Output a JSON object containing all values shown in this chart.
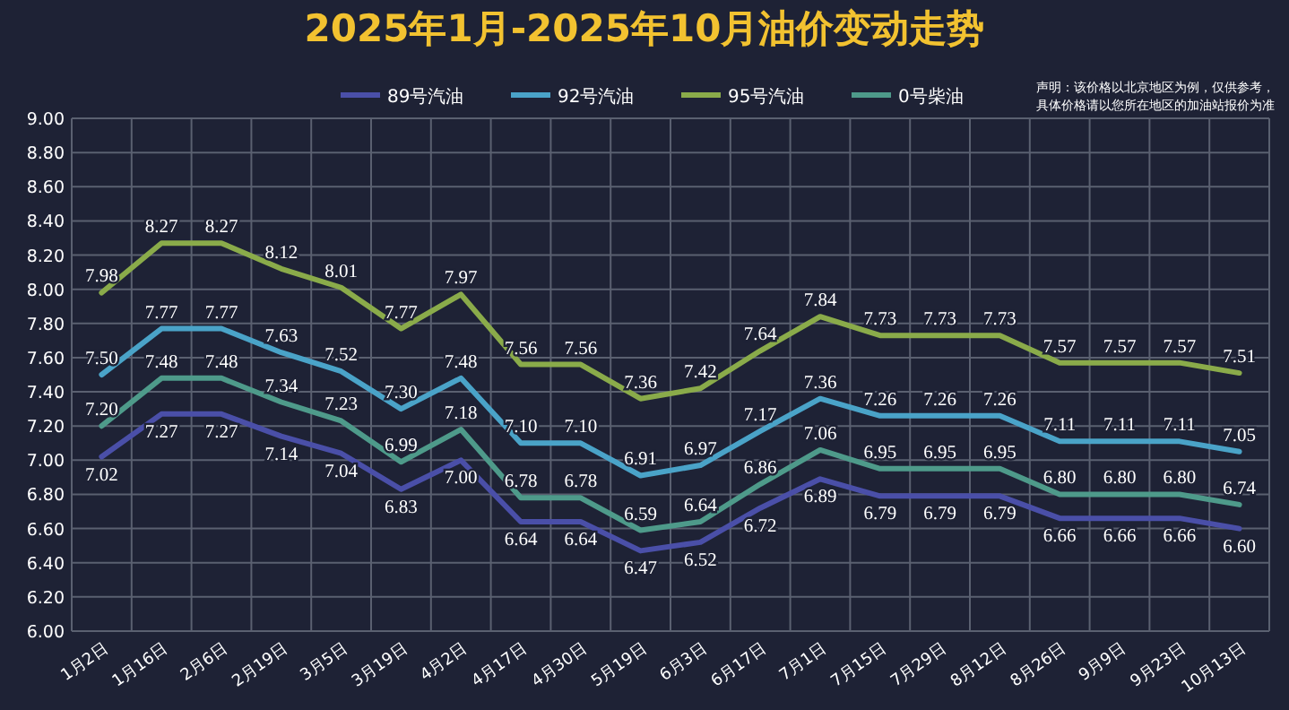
{
  "chart_data": {
    "type": "line",
    "title": "2025年1月-2025年10月油价变动走势",
    "annotations": [
      "声明：该价格以北京地区为例，仅供参考，具体价格请以您所在地区的加油站报价为准"
    ],
    "categories": [
      "1月2日",
      "1月16日",
      "2月6日",
      "2月19日",
      "3月5日",
      "3月19日",
      "4月2日",
      "4月17日",
      "4月30日",
      "5月19日",
      "6月3日",
      "6月17日",
      "7月1日",
      "7月15日",
      "7月29日",
      "8月12日",
      "8月26日",
      "9月9日",
      "9月23日",
      "10月13日"
    ],
    "series": [
      {
        "name": "89号汽油",
        "color": "#4a4fa8",
        "values": [
          7.02,
          7.27,
          7.27,
          7.14,
          7.04,
          6.83,
          7.0,
          6.64,
          6.64,
          6.47,
          6.52,
          6.72,
          6.89,
          6.79,
          6.79,
          6.79,
          6.66,
          6.66,
          6.66,
          6.6
        ],
        "value_labels": [
          "7.02",
          "7.27",
          "7.27",
          "7.14",
          "7.04",
          "6.83",
          "7.00",
          "6.64",
          "6.64",
          "6.47",
          "6.52",
          "6.72",
          "6.89",
          "6.79",
          "6.79",
          "6.79",
          "6.66",
          "6.66",
          "6.66",
          "6.60"
        ]
      },
      {
        "name": "92号汽油",
        "color": "#4aa3c8",
        "values": [
          7.5,
          7.77,
          7.77,
          7.63,
          7.52,
          7.3,
          7.48,
          7.1,
          7.1,
          6.91,
          6.97,
          7.17,
          7.36,
          7.26,
          7.26,
          7.26,
          7.11,
          7.11,
          7.11,
          7.05
        ],
        "value_labels": [
          "7.50",
          "7.77",
          "7.77",
          "7.63",
          "7.52",
          "7.30",
          "7.48",
          "7.10",
          "7.10",
          "6.91",
          "6.97",
          "7.17",
          "7.36",
          "7.26",
          "7.26",
          "7.26",
          "7.11",
          "7.11",
          "7.11",
          "7.05"
        ]
      },
      {
        "name": "95号汽油",
        "color": "#8aab4a",
        "values": [
          7.98,
          8.27,
          8.27,
          8.12,
          8.01,
          7.77,
          7.97,
          7.56,
          7.56,
          7.36,
          7.42,
          7.64,
          7.84,
          7.73,
          7.73,
          7.73,
          7.57,
          7.57,
          7.57,
          7.51
        ],
        "value_labels": [
          "7.98",
          "8.27",
          "8.27",
          "8.12",
          "8.01",
          "7.77",
          "7.97",
          "7.56",
          "7.56",
          "7.36",
          "7.42",
          "7.64",
          "7.84",
          "7.73",
          "7.73",
          "7.73",
          "7.57",
          "7.57",
          "7.57",
          "7.51"
        ]
      },
      {
        "name": "0号柴油",
        "color": "#4e9a8a",
        "values": [
          7.2,
          7.48,
          7.48,
          7.34,
          7.23,
          6.99,
          7.18,
          6.78,
          6.78,
          6.59,
          6.64,
          6.86,
          7.06,
          6.95,
          6.95,
          6.95,
          6.8,
          6.8,
          6.8,
          6.74
        ],
        "value_labels": [
          "7.20",
          "7.48",
          "7.48",
          "7.34",
          "7.23",
          "6.99",
          "7.18",
          "6.78",
          "6.78",
          "6.59",
          "6.64",
          "6.86",
          "7.06",
          "6.95",
          "6.95",
          "6.95",
          "6.80",
          "6.80",
          "6.80",
          "6.74"
        ]
      }
    ],
    "ylim": [
      6.0,
      9.0
    ],
    "yticks": [
      {
        "value": 6.0,
        "label": "6.00"
      },
      {
        "value": 6.2,
        "label": "6.20"
      },
      {
        "value": 6.4,
        "label": "6.40"
      },
      {
        "value": 6.6,
        "label": "6.60"
      },
      {
        "value": 6.8,
        "label": "6.80"
      },
      {
        "value": 7.0,
        "label": "7.00"
      },
      {
        "value": 7.2,
        "label": "7.20"
      },
      {
        "value": 7.4,
        "label": "7.40"
      },
      {
        "value": 7.6,
        "label": "7.60"
      },
      {
        "value": 7.8,
        "label": "7.80"
      },
      {
        "value": 8.0,
        "label": "8.00"
      },
      {
        "value": 8.2,
        "label": "8.20"
      },
      {
        "value": 8.4,
        "label": "8.40"
      },
      {
        "value": 8.6,
        "label": "8.60"
      },
      {
        "value": 8.8,
        "label": "8.80"
      },
      {
        "value": 9.0,
        "label": "9.00"
      }
    ],
    "grid": true,
    "legend": "top",
    "marker": "none",
    "line_style": "solid"
  }
}
